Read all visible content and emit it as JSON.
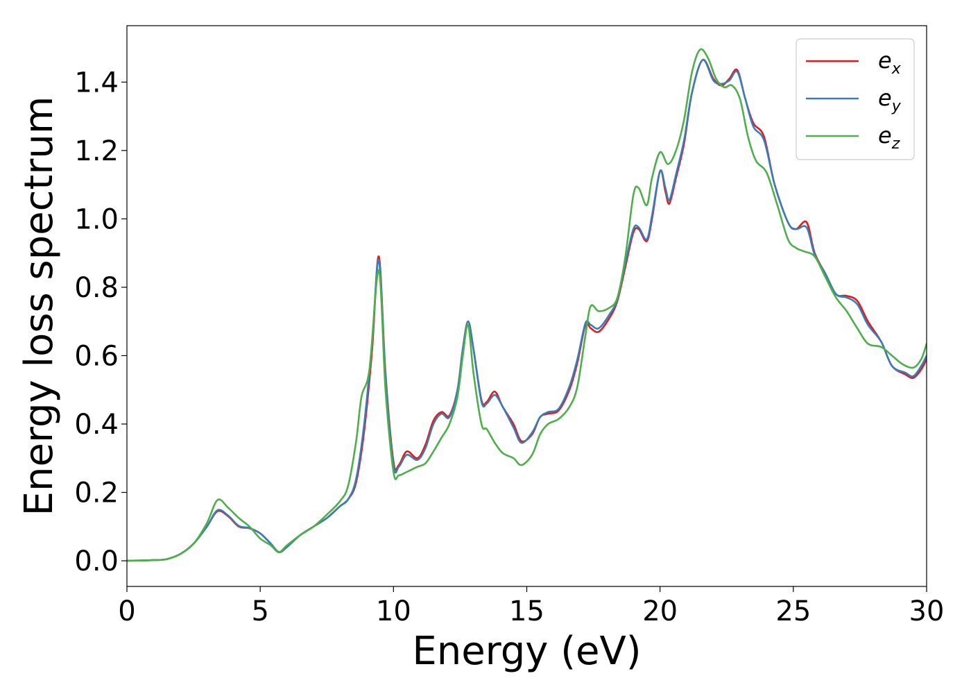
{
  "chart_data": {
    "type": "line",
    "xlabel": "Energy (eV)",
    "ylabel": "Energy loss spectrum",
    "xlim": [
      0,
      30
    ],
    "ylim": [
      -0.075,
      1.565
    ],
    "xticks": [
      0,
      5,
      10,
      15,
      20,
      25,
      30
    ],
    "yticks": [
      0.0,
      0.2,
      0.4,
      0.6,
      0.8,
      1.0,
      1.2,
      1.4
    ],
    "grid": false,
    "legend_position": "top-right",
    "series": [
      {
        "name": "e_x",
        "legend_base": "e",
        "legend_sub": "x",
        "color": "#e41a1c",
        "points": [
          [
            0,
            0
          ],
          [
            1,
            0.002
          ],
          [
            1.5,
            0.005
          ],
          [
            2,
            0.02
          ],
          [
            2.5,
            0.05
          ],
          [
            3,
            0.1
          ],
          [
            3.4,
            0.145
          ],
          [
            3.8,
            0.13
          ],
          [
            4.2,
            0.1
          ],
          [
            4.6,
            0.095
          ],
          [
            5,
            0.08
          ],
          [
            5.4,
            0.05
          ],
          [
            5.7,
            0.025
          ],
          [
            6,
            0.04
          ],
          [
            6.5,
            0.075
          ],
          [
            7,
            0.1
          ],
          [
            7.5,
            0.125
          ],
          [
            8,
            0.16
          ],
          [
            8.3,
            0.18
          ],
          [
            8.6,
            0.23
          ],
          [
            8.9,
            0.38
          ],
          [
            9.2,
            0.62
          ],
          [
            9.45,
            0.89
          ],
          [
            9.7,
            0.55
          ],
          [
            10,
            0.29
          ],
          [
            10.2,
            0.28
          ],
          [
            10.5,
            0.32
          ],
          [
            10.9,
            0.3
          ],
          [
            11.2,
            0.34
          ],
          [
            11.5,
            0.41
          ],
          [
            11.8,
            0.435
          ],
          [
            12.1,
            0.425
          ],
          [
            12.4,
            0.5
          ],
          [
            12.6,
            0.62
          ],
          [
            12.8,
            0.7
          ],
          [
            13,
            0.62
          ],
          [
            13.3,
            0.47
          ],
          [
            13.5,
            0.465
          ],
          [
            13.8,
            0.495
          ],
          [
            14.1,
            0.45
          ],
          [
            14.5,
            0.4
          ],
          [
            14.8,
            0.35
          ],
          [
            15.2,
            0.37
          ],
          [
            15.5,
            0.42
          ],
          [
            15.8,
            0.43
          ],
          [
            16.2,
            0.44
          ],
          [
            16.6,
            0.5
          ],
          [
            16.9,
            0.58
          ],
          [
            17.2,
            0.69
          ],
          [
            17.4,
            0.68
          ],
          [
            17.7,
            0.67
          ],
          [
            18.1,
            0.71
          ],
          [
            18.4,
            0.76
          ],
          [
            18.7,
            0.86
          ],
          [
            19,
            0.96
          ],
          [
            19.2,
            0.97
          ],
          [
            19.5,
            0.935
          ],
          [
            19.7,
            1.0
          ],
          [
            20,
            1.14
          ],
          [
            20.2,
            1.08
          ],
          [
            20.35,
            1.045
          ],
          [
            20.6,
            1.12
          ],
          [
            20.9,
            1.22
          ],
          [
            21.2,
            1.37
          ],
          [
            21.6,
            1.465
          ],
          [
            22,
            1.41
          ],
          [
            22.3,
            1.39
          ],
          [
            22.6,
            1.41
          ],
          [
            22.9,
            1.435
          ],
          [
            23.2,
            1.35
          ],
          [
            23.5,
            1.28
          ],
          [
            23.9,
            1.24
          ],
          [
            24.3,
            1.1
          ],
          [
            24.8,
            0.99
          ],
          [
            25.1,
            0.97
          ],
          [
            25.5,
            0.99
          ],
          [
            25.8,
            0.9
          ],
          [
            26.2,
            0.84
          ],
          [
            26.6,
            0.78
          ],
          [
            27,
            0.775
          ],
          [
            27.4,
            0.76
          ],
          [
            27.8,
            0.7
          ],
          [
            28.3,
            0.64
          ],
          [
            28.7,
            0.57
          ],
          [
            29.2,
            0.545
          ],
          [
            29.5,
            0.535
          ],
          [
            29.8,
            0.56
          ],
          [
            30,
            0.59
          ]
        ]
      },
      {
        "name": "e_y",
        "legend_base": "e",
        "legend_sub": "y",
        "color": "#377eb8",
        "points": [
          [
            0,
            0
          ],
          [
            1,
            0.002
          ],
          [
            1.5,
            0.005
          ],
          [
            2,
            0.02
          ],
          [
            2.5,
            0.05
          ],
          [
            3,
            0.1
          ],
          [
            3.4,
            0.148
          ],
          [
            3.8,
            0.132
          ],
          [
            4.2,
            0.102
          ],
          [
            4.6,
            0.096
          ],
          [
            5,
            0.08
          ],
          [
            5.4,
            0.05
          ],
          [
            5.7,
            0.026
          ],
          [
            6,
            0.04
          ],
          [
            6.5,
            0.075
          ],
          [
            7,
            0.1
          ],
          [
            7.5,
            0.125
          ],
          [
            8,
            0.16
          ],
          [
            8.3,
            0.18
          ],
          [
            8.6,
            0.24
          ],
          [
            8.9,
            0.4
          ],
          [
            9.2,
            0.64
          ],
          [
            9.45,
            0.88
          ],
          [
            9.7,
            0.54
          ],
          [
            10,
            0.28
          ],
          [
            10.2,
            0.275
          ],
          [
            10.5,
            0.31
          ],
          [
            10.9,
            0.295
          ],
          [
            11.2,
            0.33
          ],
          [
            11.5,
            0.4
          ],
          [
            11.8,
            0.43
          ],
          [
            12.1,
            0.42
          ],
          [
            12.4,
            0.5
          ],
          [
            12.6,
            0.62
          ],
          [
            12.8,
            0.7
          ],
          [
            13,
            0.62
          ],
          [
            13.3,
            0.465
          ],
          [
            13.5,
            0.46
          ],
          [
            13.8,
            0.485
          ],
          [
            14.1,
            0.45
          ],
          [
            14.5,
            0.39
          ],
          [
            14.8,
            0.345
          ],
          [
            15.2,
            0.375
          ],
          [
            15.5,
            0.42
          ],
          [
            15.8,
            0.435
          ],
          [
            16.2,
            0.445
          ],
          [
            16.6,
            0.51
          ],
          [
            16.9,
            0.59
          ],
          [
            17.2,
            0.695
          ],
          [
            17.4,
            0.69
          ],
          [
            17.7,
            0.68
          ],
          [
            18.1,
            0.72
          ],
          [
            18.4,
            0.765
          ],
          [
            18.7,
            0.87
          ],
          [
            19,
            0.97
          ],
          [
            19.2,
            0.975
          ],
          [
            19.5,
            0.94
          ],
          [
            19.7,
            1.01
          ],
          [
            20,
            1.14
          ],
          [
            20.2,
            1.09
          ],
          [
            20.35,
            1.055
          ],
          [
            20.6,
            1.13
          ],
          [
            20.9,
            1.23
          ],
          [
            21.2,
            1.37
          ],
          [
            21.6,
            1.465
          ],
          [
            22,
            1.405
          ],
          [
            22.3,
            1.395
          ],
          [
            22.6,
            1.405
          ],
          [
            22.9,
            1.43
          ],
          [
            23.2,
            1.35
          ],
          [
            23.5,
            1.27
          ],
          [
            23.9,
            1.23
          ],
          [
            24.3,
            1.1
          ],
          [
            24.8,
            0.99
          ],
          [
            25.1,
            0.97
          ],
          [
            25.5,
            0.975
          ],
          [
            25.8,
            0.895
          ],
          [
            26.2,
            0.84
          ],
          [
            26.6,
            0.78
          ],
          [
            27,
            0.77
          ],
          [
            27.4,
            0.75
          ],
          [
            27.8,
            0.69
          ],
          [
            28.3,
            0.64
          ],
          [
            28.7,
            0.57
          ],
          [
            29.2,
            0.55
          ],
          [
            29.5,
            0.54
          ],
          [
            29.8,
            0.57
          ],
          [
            30,
            0.6
          ]
        ]
      },
      {
        "name": "e_z",
        "legend_base": "e",
        "legend_sub": "z",
        "color": "#4daf4a",
        "points": [
          [
            0,
            0
          ],
          [
            1,
            0.002
          ],
          [
            1.5,
            0.005
          ],
          [
            2,
            0.02
          ],
          [
            2.5,
            0.05
          ],
          [
            3,
            0.11
          ],
          [
            3.4,
            0.178
          ],
          [
            3.8,
            0.155
          ],
          [
            4.2,
            0.125
          ],
          [
            4.6,
            0.1
          ],
          [
            5,
            0.065
          ],
          [
            5.4,
            0.045
          ],
          [
            5.7,
            0.025
          ],
          [
            6,
            0.045
          ],
          [
            6.5,
            0.075
          ],
          [
            7,
            0.1
          ],
          [
            7.5,
            0.135
          ],
          [
            8,
            0.175
          ],
          [
            8.3,
            0.22
          ],
          [
            8.6,
            0.35
          ],
          [
            8.8,
            0.48
          ],
          [
            9.1,
            0.56
          ],
          [
            9.45,
            0.85
          ],
          [
            9.7,
            0.5
          ],
          [
            10,
            0.26
          ],
          [
            10.2,
            0.25
          ],
          [
            10.5,
            0.26
          ],
          [
            10.9,
            0.275
          ],
          [
            11.2,
            0.285
          ],
          [
            11.5,
            0.32
          ],
          [
            11.8,
            0.36
          ],
          [
            12.1,
            0.4
          ],
          [
            12.4,
            0.48
          ],
          [
            12.6,
            0.6
          ],
          [
            12.8,
            0.69
          ],
          [
            13,
            0.55
          ],
          [
            13.3,
            0.4
          ],
          [
            13.5,
            0.385
          ],
          [
            13.8,
            0.345
          ],
          [
            14.1,
            0.315
          ],
          [
            14.5,
            0.3
          ],
          [
            14.8,
            0.28
          ],
          [
            15.2,
            0.31
          ],
          [
            15.5,
            0.37
          ],
          [
            15.8,
            0.4
          ],
          [
            16.2,
            0.415
          ],
          [
            16.6,
            0.45
          ],
          [
            16.9,
            0.51
          ],
          [
            17.2,
            0.66
          ],
          [
            17.4,
            0.745
          ],
          [
            17.7,
            0.73
          ],
          [
            18.1,
            0.74
          ],
          [
            18.4,
            0.77
          ],
          [
            18.7,
            0.89
          ],
          [
            19,
            1.07
          ],
          [
            19.2,
            1.09
          ],
          [
            19.5,
            1.04
          ],
          [
            19.7,
            1.12
          ],
          [
            20,
            1.195
          ],
          [
            20.3,
            1.16
          ],
          [
            20.6,
            1.2
          ],
          [
            20.9,
            1.29
          ],
          [
            21.2,
            1.43
          ],
          [
            21.5,
            1.495
          ],
          [
            21.8,
            1.47
          ],
          [
            22.1,
            1.41
          ],
          [
            22.4,
            1.385
          ],
          [
            22.7,
            1.39
          ],
          [
            23,
            1.35
          ],
          [
            23.3,
            1.24
          ],
          [
            23.6,
            1.17
          ],
          [
            24,
            1.135
          ],
          [
            24.4,
            1.04
          ],
          [
            24.8,
            0.94
          ],
          [
            25.1,
            0.915
          ],
          [
            25.4,
            0.905
          ],
          [
            25.8,
            0.89
          ],
          [
            26.2,
            0.83
          ],
          [
            26.6,
            0.77
          ],
          [
            27,
            0.73
          ],
          [
            27.4,
            0.68
          ],
          [
            27.8,
            0.635
          ],
          [
            28.3,
            0.625
          ],
          [
            28.7,
            0.6
          ],
          [
            29.1,
            0.575
          ],
          [
            29.5,
            0.565
          ],
          [
            29.8,
            0.59
          ],
          [
            30,
            0.635
          ]
        ]
      }
    ]
  }
}
